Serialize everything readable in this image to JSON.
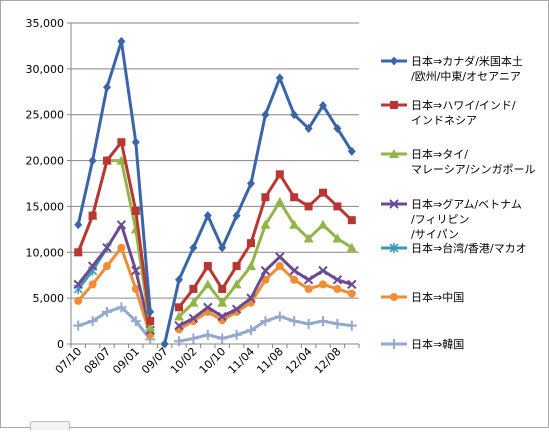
{
  "chart_data": {
    "type": "line",
    "title": "",
    "xlabel": "",
    "ylabel": "",
    "ylim": [
      0,
      35000
    ],
    "y_ticks": [
      "0",
      "5,000",
      "10,000",
      "15,000",
      "20,000",
      "25,000",
      "30,000",
      "35,000"
    ],
    "x_tick_labels": [
      "07/10",
      "08/07",
      "09/01",
      "09/07",
      "10/02",
      "10/10",
      "11/04",
      "11/08",
      "12/04",
      "12/08"
    ],
    "grid": "horizontal",
    "legend_position": "right",
    "series": [
      {
        "name": "日本⇒カナダ/米国本土/欧州/中東/オセアニア",
        "legend_lines": [
          "日本⇒カナダ/米国本土",
          "/欧州/中東/オセアニア"
        ],
        "color": "#3a65a8",
        "marker": "diamond",
        "segments": [
          [
            [
              0,
              13000
            ],
            [
              1,
              20000
            ],
            [
              2,
              28000
            ],
            [
              3,
              33000
            ],
            [
              4,
              22000
            ],
            [
              5,
              3500
            ]
          ],
          [
            [
              6,
              0
            ],
            [
              7,
              7000
            ],
            [
              8,
              10500
            ],
            [
              9,
              14000
            ],
            [
              10,
              10500
            ],
            [
              11,
              14000
            ],
            [
              12,
              17500
            ],
            [
              13,
              25000
            ],
            [
              14,
              29000
            ],
            [
              15,
              25000
            ],
            [
              16,
              23500
            ],
            [
              17,
              26000
            ],
            [
              18,
              23500
            ],
            [
              19,
              21000
            ]
          ]
        ]
      },
      {
        "name": "日本⇒ハワイ/インド/インドネシア",
        "legend_lines": [
          "日本⇒ハワイ/インド/",
          "インドネシア"
        ],
        "color": "#b83733",
        "marker": "square",
        "segments": [
          [
            [
              0,
              10000
            ],
            [
              1,
              14000
            ],
            [
              2,
              20000
            ],
            [
              3,
              22000
            ],
            [
              4,
              14500
            ],
            [
              5,
              2500
            ]
          ],
          [
            [
              7,
              4000
            ],
            [
              8,
              6000
            ],
            [
              9,
              8500
            ],
            [
              10,
              6000
            ],
            [
              11,
              8500
            ],
            [
              12,
              11000
            ],
            [
              13,
              16000
            ],
            [
              14,
              18500
            ],
            [
              15,
              16000
            ],
            [
              16,
              15000
            ],
            [
              17,
              16500
            ],
            [
              18,
              15000
            ],
            [
              19,
              13500
            ]
          ]
        ]
      },
      {
        "name": "日本⇒タイ/マレーシア/シンガポール",
        "legend_lines": [
          "日本⇒タイ/",
          "マレーシア/シンガポール"
        ],
        "color": "#92b54a",
        "marker": "triangle",
        "segments": [
          [
            [
              0,
              10000
            ],
            [
              1,
              14000
            ],
            [
              2,
              20000
            ],
            [
              3,
              20000
            ],
            [
              4,
              12500
            ],
            [
              5,
              1800
            ]
          ],
          [
            [
              7,
              3000
            ],
            [
              8,
              4500
            ],
            [
              9,
              6500
            ],
            [
              10,
              4500
            ],
            [
              11,
              6500
            ],
            [
              12,
              8500
            ],
            [
              13,
              13000
            ],
            [
              14,
              15500
            ],
            [
              15,
              13000
            ],
            [
              16,
              11500
            ],
            [
              17,
              13000
            ],
            [
              18,
              11500
            ],
            [
              19,
              10500
            ]
          ]
        ]
      },
      {
        "name": "日本⇒グアム/ベトナム/フィリピン/サイパン",
        "legend_lines": [
          "日本⇒グアム/ベトナム",
          "/フィリピン",
          "/サイパン"
        ],
        "color": "#6a4a93",
        "marker": "x",
        "segments": [
          [
            [
              0,
              6500
            ],
            [
              1,
              8500
            ],
            [
              2,
              10500
            ],
            [
              3,
              13000
            ],
            [
              4,
              8000
            ],
            [
              5,
              1500
            ]
          ],
          [
            [
              7,
              2000
            ],
            [
              8,
              2800
            ],
            [
              9,
              4000
            ],
            [
              10,
              3000
            ],
            [
              11,
              3800
            ],
            [
              12,
              5000
            ],
            [
              13,
              8000
            ],
            [
              14,
              9500
            ],
            [
              15,
              8000
            ],
            [
              16,
              7000
            ],
            [
              17,
              8000
            ],
            [
              18,
              7000
            ],
            [
              19,
              6500
            ]
          ]
        ]
      },
      {
        "name": "日本⇒台湾/香港/マカオ",
        "legend_lines": [
          "日本⇒台湾/香港/マカオ"
        ],
        "color": "#3e9ab5",
        "marker": "asterisk",
        "segments": [
          [
            [
              0,
              6000
            ],
            [
              1,
              8000
            ],
            [
              2,
              10500
            ]
          ]
        ]
      },
      {
        "name": "日本⇒中国",
        "legend_lines": [
          "日本⇒中国"
        ],
        "color": "#ef8c34",
        "marker": "circle",
        "segments": [
          [
            [
              0,
              4700
            ],
            [
              1,
              6500
            ],
            [
              2,
              8500
            ],
            [
              3,
              10500
            ],
            [
              4,
              6000
            ],
            [
              5,
              1000
            ]
          ],
          [
            [
              7,
              1600
            ],
            [
              8,
              2500
            ],
            [
              9,
              3500
            ],
            [
              10,
              2600
            ],
            [
              11,
              3500
            ],
            [
              12,
              4500
            ],
            [
              13,
              7000
            ],
            [
              14,
              8500
            ],
            [
              15,
              7000
            ],
            [
              16,
              6000
            ],
            [
              17,
              6500
            ],
            [
              18,
              6000
            ],
            [
              19,
              5500
            ]
          ]
        ]
      },
      {
        "name": "日本⇒韓国",
        "legend_lines": [
          "日本⇒韓国"
        ],
        "color": "#93a9d0",
        "marker": "plus",
        "segments": [
          [
            [
              0,
              2000
            ],
            [
              1,
              2500
            ],
            [
              2,
              3500
            ],
            [
              3,
              4000
            ],
            [
              4,
              2500
            ],
            [
              5,
              500
            ]
          ],
          [
            [
              7,
              300
            ],
            [
              8,
              600
            ],
            [
              9,
              1000
            ],
            [
              10,
              600
            ],
            [
              11,
              1000
            ],
            [
              12,
              1500
            ],
            [
              13,
              2500
            ],
            [
              14,
              3000
            ],
            [
              15,
              2500
            ],
            [
              16,
              2200
            ],
            [
              17,
              2500
            ],
            [
              18,
              2200
            ],
            [
              19,
              2000
            ]
          ]
        ]
      }
    ]
  }
}
